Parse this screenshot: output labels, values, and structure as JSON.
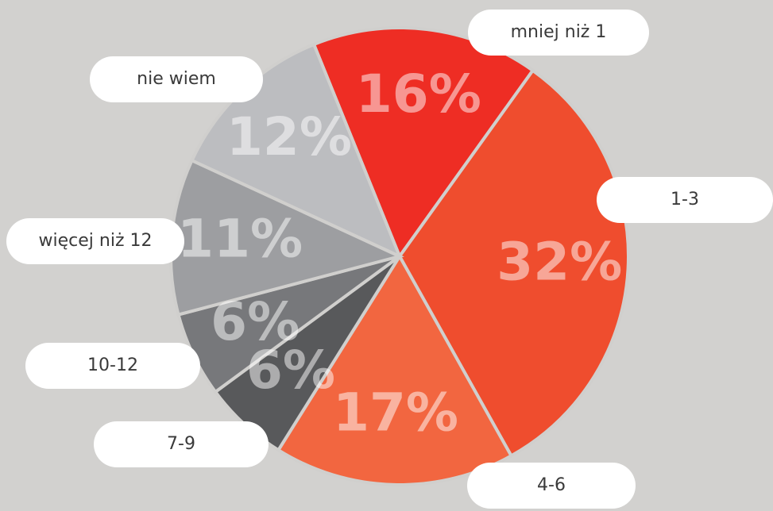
{
  "chart_data": {
    "type": "pie",
    "categories": [
      "mniej niż 1",
      "1-3",
      "4-6",
      "7-9",
      "10-12",
      "więcej niż 12",
      "nie wiem"
    ],
    "values": [
      16,
      32,
      17,
      6,
      6,
      11,
      12
    ],
    "value_labels": [
      "16%",
      "32%",
      "17%",
      "6%",
      "6%",
      "11%",
      "12%"
    ],
    "colors": [
      "#ee2d24",
      "#ef4d2e",
      "#f26640",
      "#58595b",
      "#77787b",
      "#9d9ea1",
      "#bcbdc0"
    ]
  }
}
